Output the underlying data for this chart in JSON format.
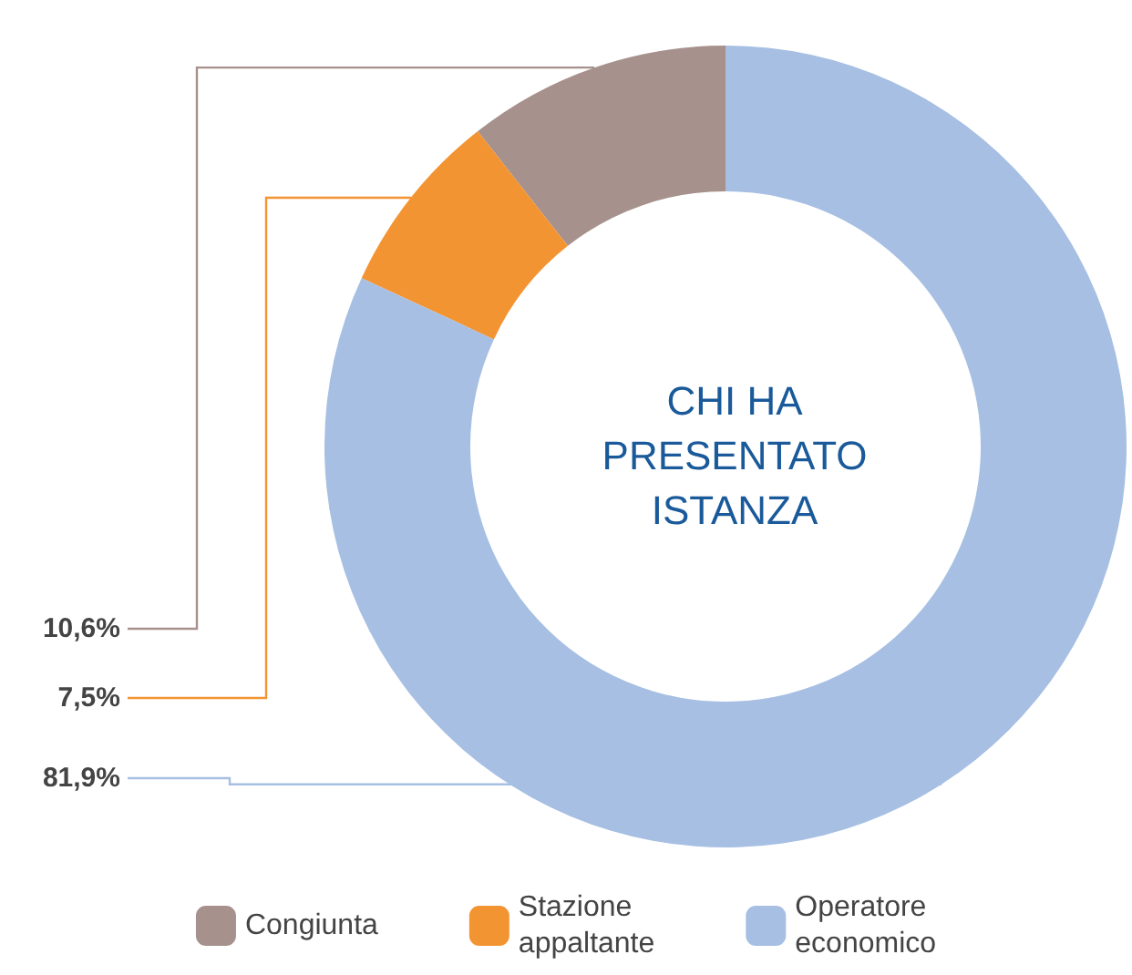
{
  "chart_data": {
    "type": "donut",
    "title": "CHI HA PRESENTATO ISTANZA",
    "categories": [
      "Congiunta",
      "Stazione appaltante",
      "Operatore economico"
    ],
    "values": [
      10.6,
      7.5,
      81.9
    ],
    "colors": [
      "#a6918d",
      "#f39433",
      "#a6bfe3"
    ],
    "value_labels": [
      "10,6%",
      "7,5%",
      "81,9%"
    ],
    "legend": "bottom"
  }
}
